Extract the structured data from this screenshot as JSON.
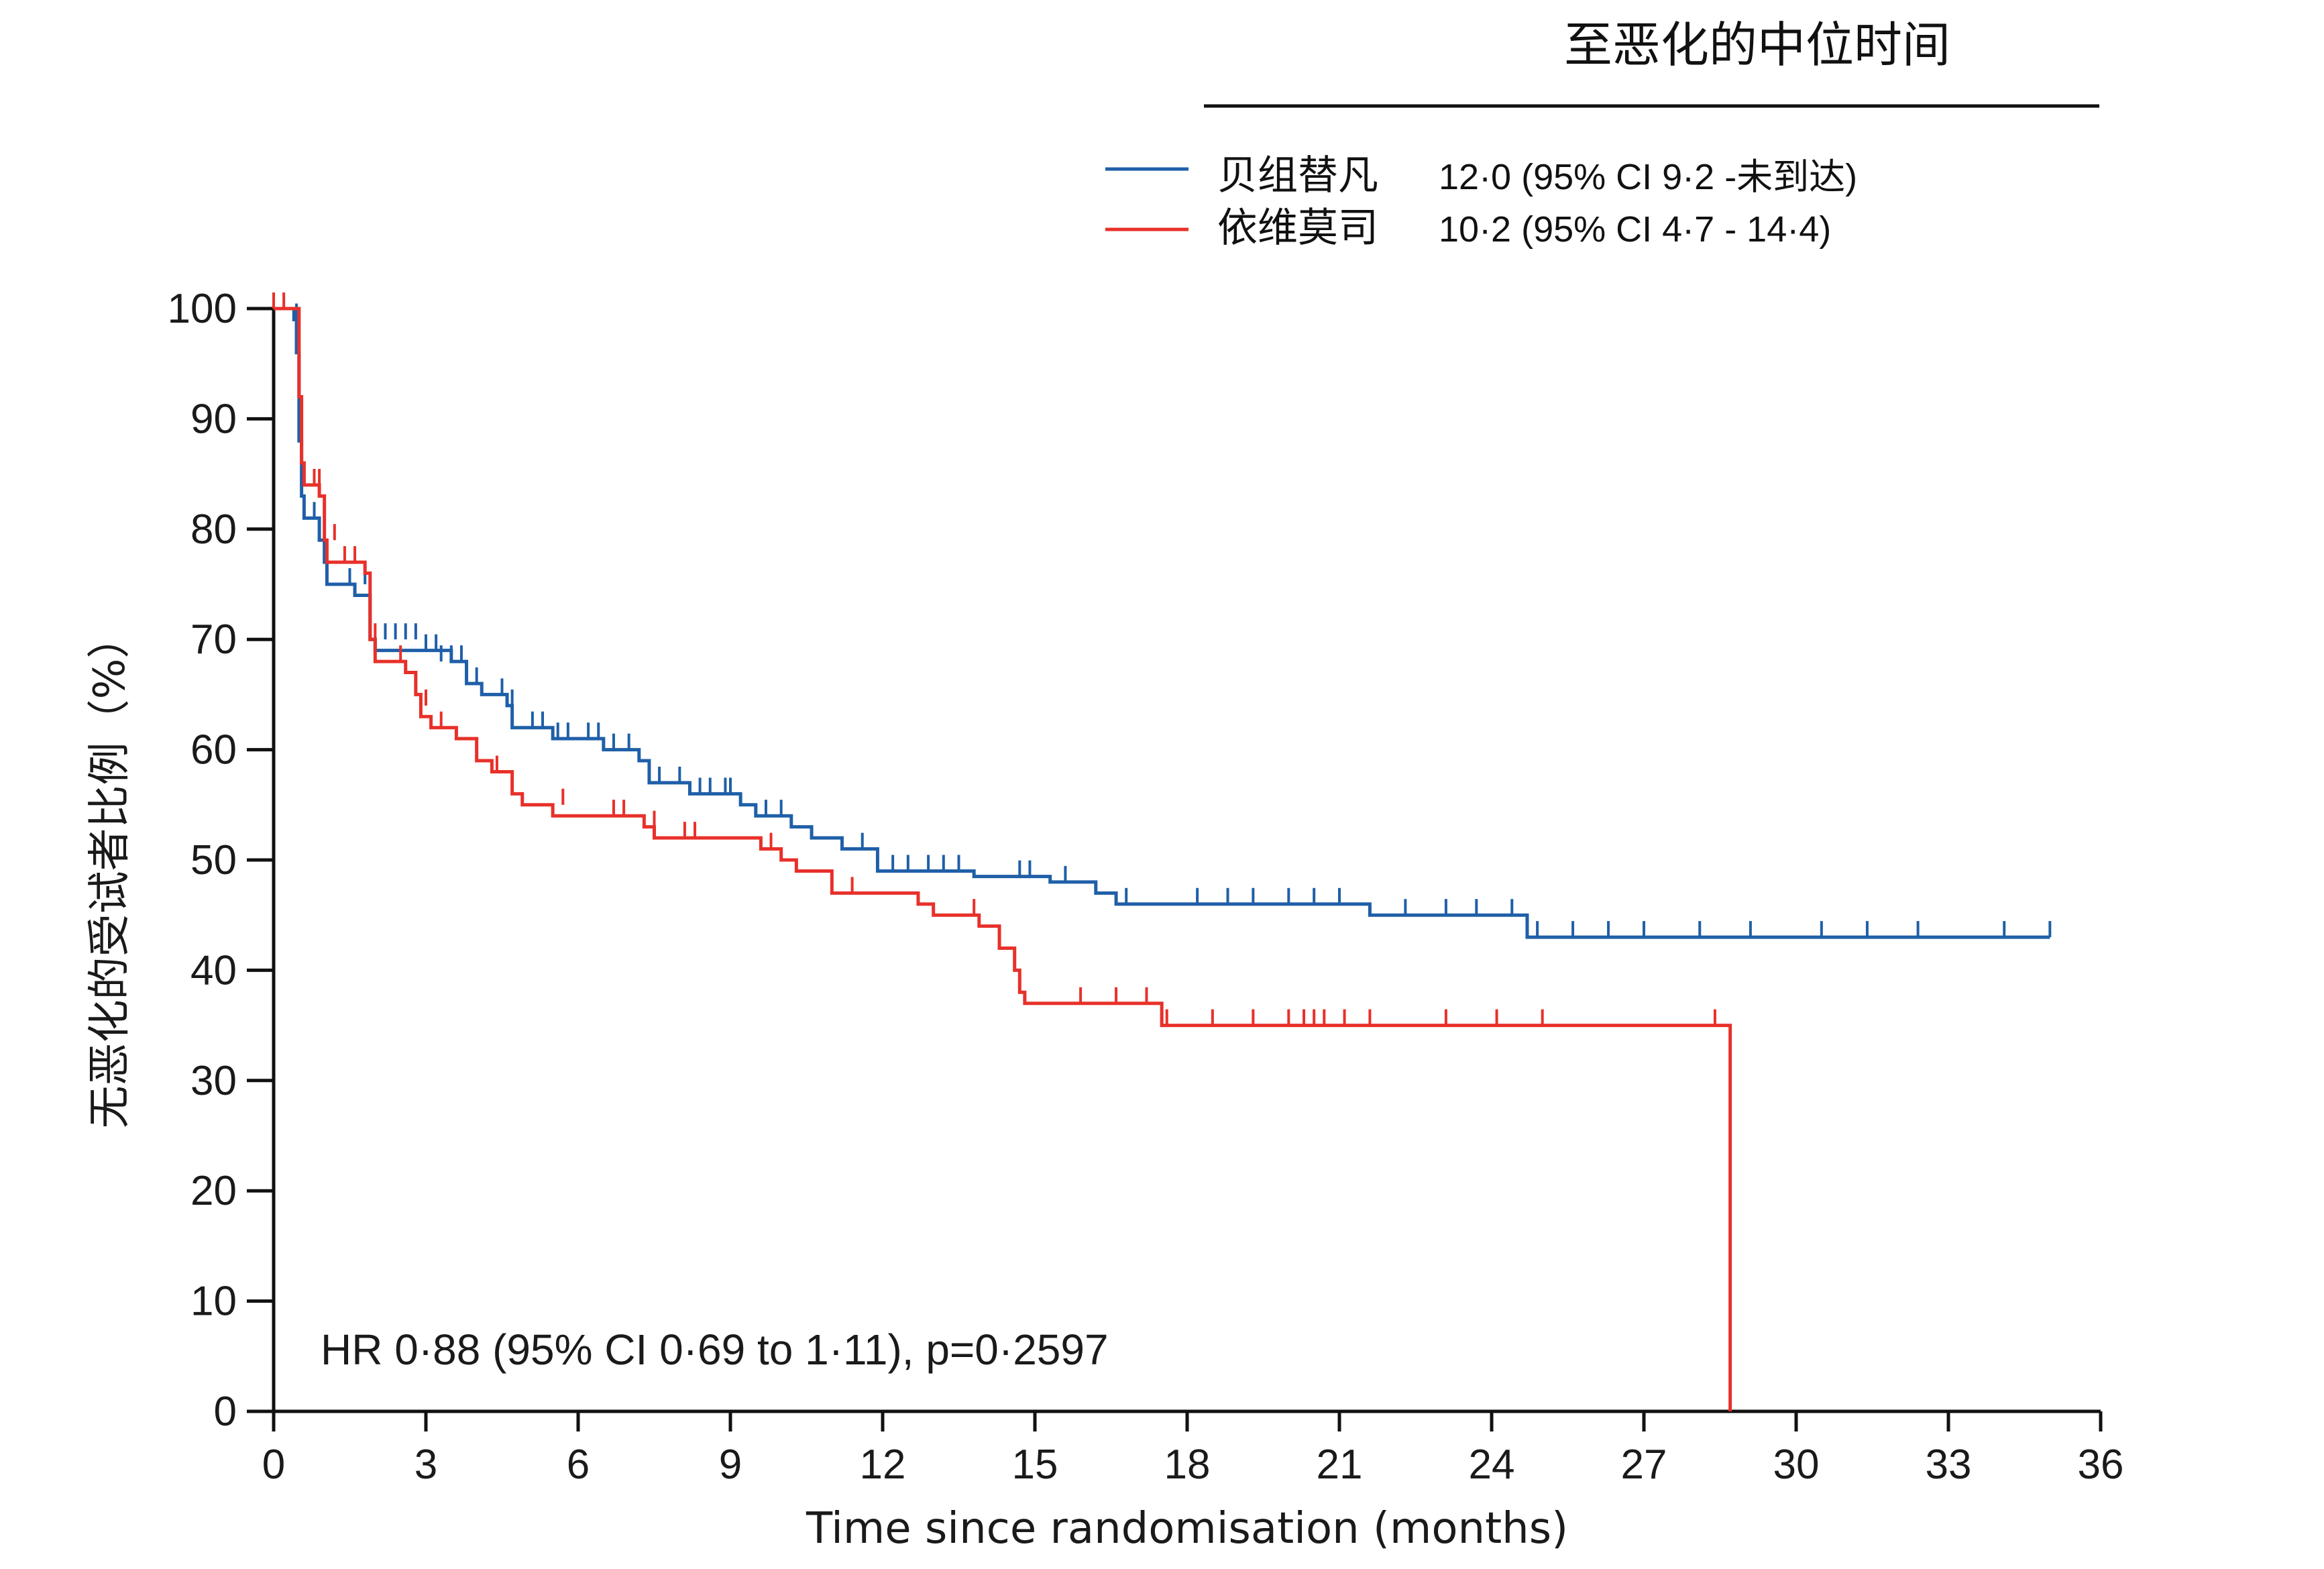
{
  "chart_data": {
    "type": "line",
    "subtype": "kaplan-meier",
    "header": "至恶化的中位时间",
    "xlabel": "Time since randomisation (months)",
    "ylabel": "无恶化的受试者比例（%）",
    "xlim": [
      0,
      36
    ],
    "ylim": [
      0,
      100
    ],
    "xticks": [
      0,
      3,
      6,
      9,
      12,
      15,
      18,
      21,
      24,
      27,
      30,
      33,
      36
    ],
    "yticks": [
      0,
      10,
      20,
      30,
      40,
      50,
      60,
      70,
      80,
      90,
      100
    ],
    "grid": false,
    "legend_position": "top-right",
    "annotation": "HR 0·88 (95% CI 0·69 to 1·11), p=0·2597",
    "series": [
      {
        "name": "贝组替凡",
        "stat": "12·0 (95% CI 9·2  -未到达)",
        "color": "#1f5fa8",
        "steps": [
          [
            0,
            100
          ],
          [
            0.4,
            99
          ],
          [
            0.45,
            96
          ],
          [
            0.5,
            88
          ],
          [
            0.55,
            83
          ],
          [
            0.6,
            81
          ],
          [
            0.9,
            79
          ],
          [
            1.0,
            77
          ],
          [
            1.05,
            75
          ],
          [
            1.6,
            74
          ],
          [
            1.9,
            70
          ],
          [
            2.0,
            69
          ],
          [
            3.5,
            68
          ],
          [
            3.8,
            66
          ],
          [
            4.1,
            65
          ],
          [
            4.6,
            64
          ],
          [
            4.7,
            62
          ],
          [
            5.5,
            61
          ],
          [
            6.5,
            60
          ],
          [
            7.2,
            59
          ],
          [
            7.4,
            57
          ],
          [
            8.2,
            56
          ],
          [
            9.2,
            55
          ],
          [
            9.5,
            54
          ],
          [
            10.2,
            53
          ],
          [
            10.6,
            52
          ],
          [
            11.2,
            51
          ],
          [
            11.9,
            49
          ],
          [
            13.8,
            48.5
          ],
          [
            15.3,
            48
          ],
          [
            16.2,
            47
          ],
          [
            16.6,
            46
          ],
          [
            21.6,
            45
          ],
          [
            24.7,
            43
          ],
          [
            35.0,
            43
          ]
        ],
        "censored": [
          [
            0.45,
            99
          ],
          [
            0.8,
            81
          ],
          [
            1.0,
            77
          ],
          [
            1.5,
            75
          ],
          [
            1.8,
            75
          ],
          [
            2.2,
            70
          ],
          [
            2.4,
            70
          ],
          [
            2.6,
            70
          ],
          [
            2.8,
            70
          ],
          [
            3.0,
            69
          ],
          [
            3.2,
            69
          ],
          [
            3.3,
            68
          ],
          [
            3.5,
            68
          ],
          [
            3.7,
            68
          ],
          [
            4.0,
            66
          ],
          [
            4.5,
            65
          ],
          [
            4.7,
            64
          ],
          [
            5.1,
            62
          ],
          [
            5.3,
            62
          ],
          [
            5.6,
            61
          ],
          [
            5.8,
            61
          ],
          [
            6.2,
            61
          ],
          [
            6.4,
            61
          ],
          [
            6.7,
            60
          ],
          [
            7.0,
            60
          ],
          [
            7.6,
            57
          ],
          [
            8.0,
            57
          ],
          [
            8.4,
            56
          ],
          [
            8.6,
            56
          ],
          [
            8.9,
            56
          ],
          [
            9.0,
            56
          ],
          [
            9.7,
            54
          ],
          [
            10.0,
            54
          ],
          [
            11.6,
            51
          ],
          [
            12.2,
            49
          ],
          [
            12.5,
            49
          ],
          [
            12.9,
            49
          ],
          [
            13.2,
            49
          ],
          [
            13.5,
            49
          ],
          [
            14.7,
            48.5
          ],
          [
            14.9,
            48.5
          ],
          [
            15.6,
            48
          ],
          [
            16.8,
            46
          ],
          [
            18.2,
            46
          ],
          [
            18.8,
            46
          ],
          [
            19.3,
            46
          ],
          [
            20.0,
            46
          ],
          [
            20.5,
            46
          ],
          [
            21.0,
            46
          ],
          [
            22.3,
            45
          ],
          [
            23.1,
            45
          ],
          [
            23.7,
            45
          ],
          [
            24.4,
            45
          ],
          [
            24.9,
            43
          ],
          [
            25.6,
            43
          ],
          [
            26.3,
            43
          ],
          [
            27.0,
            43
          ],
          [
            28.1,
            43
          ],
          [
            29.1,
            43
          ],
          [
            30.5,
            43
          ],
          [
            31.4,
            43
          ],
          [
            32.4,
            43
          ],
          [
            34.1,
            43
          ],
          [
            35.0,
            43
          ]
        ]
      },
      {
        "name": "依维莫司",
        "stat": "10·2 (95% CI 4·7 - 14·4)",
        "color": "#e8302a",
        "steps": [
          [
            0,
            100
          ],
          [
            0.5,
            92
          ],
          [
            0.55,
            86
          ],
          [
            0.6,
            84
          ],
          [
            0.9,
            83
          ],
          [
            1.0,
            79
          ],
          [
            1.05,
            77
          ],
          [
            1.8,
            76
          ],
          [
            1.9,
            70
          ],
          [
            2.0,
            68
          ],
          [
            2.6,
            67
          ],
          [
            2.8,
            65
          ],
          [
            2.9,
            63
          ],
          [
            3.1,
            62
          ],
          [
            3.6,
            61
          ],
          [
            4.0,
            59
          ],
          [
            4.3,
            58
          ],
          [
            4.7,
            56
          ],
          [
            4.9,
            55
          ],
          [
            5.5,
            54
          ],
          [
            7.3,
            53
          ],
          [
            7.5,
            52
          ],
          [
            9.6,
            51
          ],
          [
            10.0,
            50
          ],
          [
            10.3,
            49
          ],
          [
            11.0,
            47
          ],
          [
            12.7,
            46
          ],
          [
            13.0,
            45
          ],
          [
            13.9,
            44
          ],
          [
            14.3,
            42
          ],
          [
            14.6,
            40
          ],
          [
            14.7,
            38
          ],
          [
            14.8,
            37
          ],
          [
            17.5,
            35
          ],
          [
            28.7,
            35
          ],
          [
            28.7,
            0
          ]
        ],
        "censored": [
          [
            0.0,
            100
          ],
          [
            0.2,
            100
          ],
          [
            0.8,
            84
          ],
          [
            0.9,
            84
          ],
          [
            1.2,
            79
          ],
          [
            1.4,
            77
          ],
          [
            1.6,
            77
          ],
          [
            2.0,
            70
          ],
          [
            2.5,
            68
          ],
          [
            3.0,
            64
          ],
          [
            3.3,
            62
          ],
          [
            4.4,
            58
          ],
          [
            5.7,
            55
          ],
          [
            6.7,
            54
          ],
          [
            6.9,
            54
          ],
          [
            7.5,
            53
          ],
          [
            8.1,
            52
          ],
          [
            8.3,
            52
          ],
          [
            9.8,
            51
          ],
          [
            11.4,
            47
          ],
          [
            13.8,
            45
          ],
          [
            15.9,
            37
          ],
          [
            16.6,
            37
          ],
          [
            17.2,
            37
          ],
          [
            17.6,
            35
          ],
          [
            18.5,
            35
          ],
          [
            19.3,
            35
          ],
          [
            20.0,
            35
          ],
          [
            20.3,
            35
          ],
          [
            20.5,
            35
          ],
          [
            20.7,
            35
          ],
          [
            21.1,
            35
          ],
          [
            21.6,
            35
          ],
          [
            23.1,
            35
          ],
          [
            24.1,
            35
          ],
          [
            25.0,
            35
          ],
          [
            28.4,
            35
          ]
        ]
      }
    ]
  }
}
